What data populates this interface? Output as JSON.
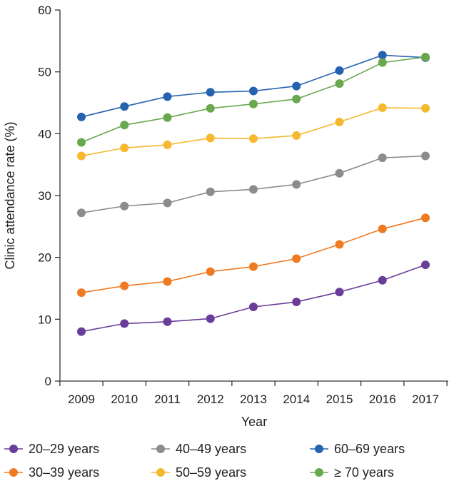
{
  "chart_data": {
    "type": "line",
    "title": "",
    "xlabel": "Year",
    "ylabel": "Clinic attendance rate (%)",
    "ylim": [
      0,
      60
    ],
    "yticks": [
      0,
      10,
      20,
      30,
      40,
      50,
      60
    ],
    "grid": false,
    "legend_position": "bottom",
    "categories": [
      "2009",
      "2010",
      "2011",
      "2012",
      "2013",
      "2014",
      "2015",
      "2016",
      "2017"
    ],
    "series": [
      {
        "name": "20–29 years",
        "color": "#6a3d9a",
        "values": [
          8.0,
          9.3,
          9.6,
          10.1,
          12.0,
          12.8,
          14.4,
          16.3,
          18.8
        ]
      },
      {
        "name": "30–39 years",
        "color": "#f07a22",
        "values": [
          14.3,
          15.4,
          16.1,
          17.7,
          18.5,
          19.8,
          22.1,
          24.6,
          26.4
        ]
      },
      {
        "name": "40–49 years",
        "color": "#8c8c8c",
        "values": [
          27.2,
          28.3,
          28.8,
          30.6,
          31.0,
          31.8,
          33.6,
          36.1,
          36.4
        ]
      },
      {
        "name": "50–59 years",
        "color": "#f5b82e",
        "values": [
          36.4,
          37.7,
          38.2,
          39.3,
          39.2,
          39.7,
          41.9,
          44.2,
          44.1
        ]
      },
      {
        "name": "60–69 years",
        "color": "#2563b0",
        "values": [
          42.7,
          44.4,
          46.0,
          46.7,
          46.9,
          47.7,
          50.2,
          52.7,
          52.3
        ]
      },
      {
        "name": "≥ 70 years",
        "color": "#6aa84f",
        "values": [
          38.6,
          41.4,
          42.6,
          44.1,
          44.8,
          45.6,
          48.1,
          51.5,
          52.4
        ]
      }
    ],
    "legend_order": [
      0,
      2,
      4,
      1,
      3,
      5
    ]
  }
}
